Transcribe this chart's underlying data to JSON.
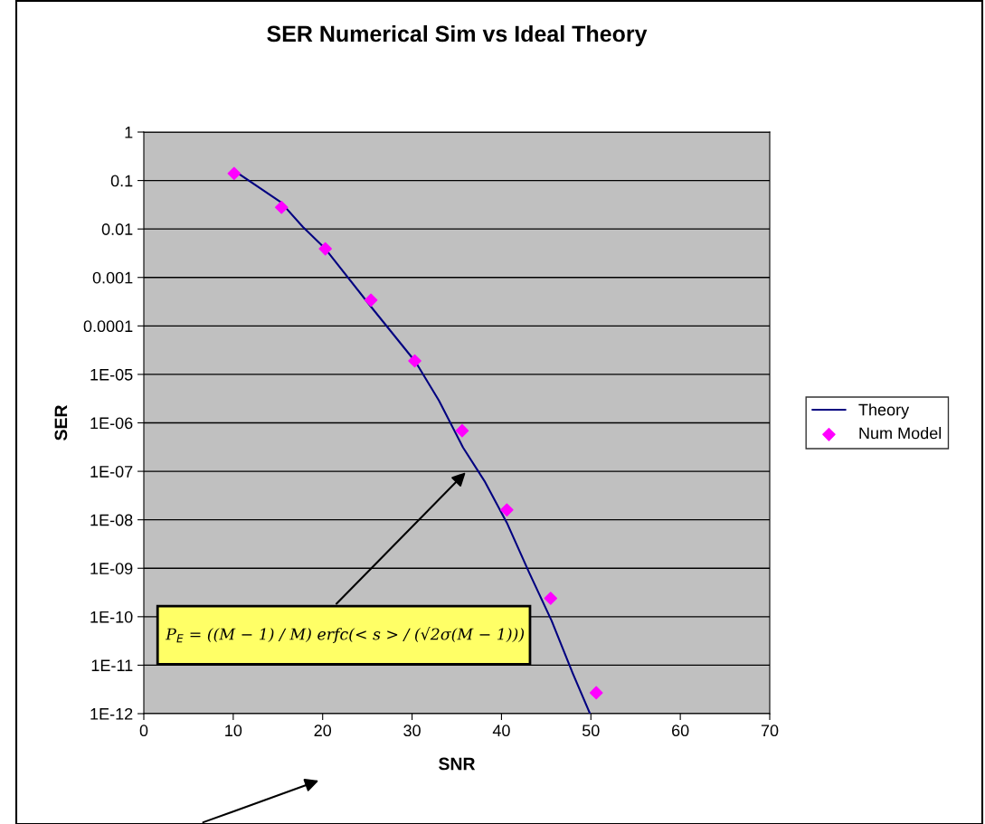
{
  "chart_data": {
    "type": "line",
    "title": "SER Numerical Sim vs Ideal Theory",
    "xlabel": "SNR",
    "ylabel": "SER",
    "log": "y",
    "grid": "y",
    "legend": "right",
    "xlim": [
      0,
      70
    ],
    "xticks": [
      0,
      10,
      20,
      30,
      40,
      50,
      60,
      70
    ],
    "ylim": [
      1e-12,
      1
    ],
    "yticks": [
      {
        "value": 1e-12,
        "label": "1E-12"
      },
      {
        "value": 1e-11,
        "label": "1E-11"
      },
      {
        "value": 1e-10,
        "label": "1E-10"
      },
      {
        "value": 1e-09,
        "label": "1E-09"
      },
      {
        "value": 1e-08,
        "label": "1E-08"
      },
      {
        "value": 1e-07,
        "label": "1E-07"
      },
      {
        "value": 1e-06,
        "label": "1E-06"
      },
      {
        "value": 1e-05,
        "label": "1E-05"
      },
      {
        "value": 0.0001,
        "label": "0.0001"
      },
      {
        "value": 0.001,
        "label": "0.001"
      },
      {
        "value": 0.01,
        "label": "0.01"
      },
      {
        "value": 0.1,
        "label": "0.1"
      },
      1
    ],
    "series": [
      {
        "name": "Theory",
        "color": "#000080",
        "marker": "none",
        "x": [
          10.1,
          15.3,
          17.8,
          20.3,
          25.4,
          30.4,
          33.0,
          35.7,
          38.1,
          40.6,
          43.1,
          45.6,
          48.0,
          49.9
        ],
        "values": [
          0.16,
          0.036,
          0.011,
          0.0039,
          0.00025,
          1.8e-05,
          2.9e-06,
          3.1e-07,
          6.3e-08,
          8.7e-09,
          8.1e-10,
          8.3e-11,
          6.6e-12,
          1e-12
        ]
      },
      {
        "name": "Num Model",
        "type": "scatter",
        "color": "#ff00ff",
        "marker": "diamond",
        "x": [
          10.1,
          15.4,
          20.3,
          25.4,
          30.3,
          35.6,
          40.6,
          45.5,
          50.6
        ],
        "values": [
          0.14,
          0.028,
          0.0039,
          0.00034,
          1.9e-05,
          6.9e-07,
          1.6e-08,
          2.4e-10,
          2.7e-12
        ]
      }
    ],
    "annotations": [
      "P$_{E}$ = ((M − 1) / M) erfc(< s > / (√2σ(M − 1)))"
    ]
  }
}
